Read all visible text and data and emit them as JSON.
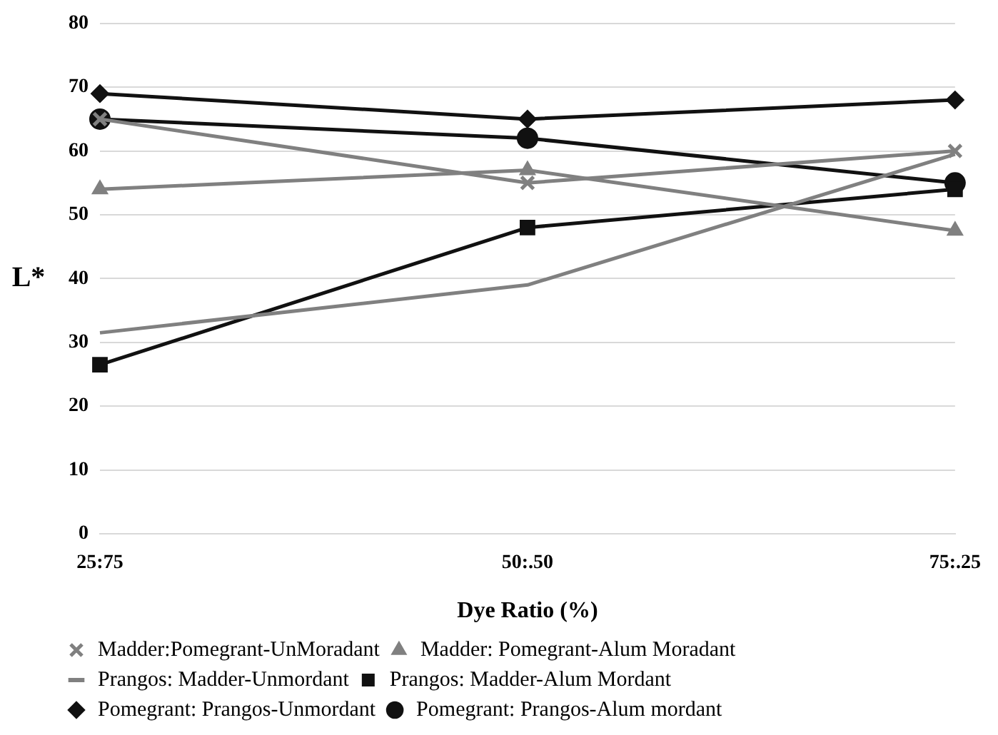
{
  "chart_data": {
    "type": "line",
    "xlabel": "Dye Ratio (%)",
    "ylabel": "L*",
    "categories": [
      "25:75",
      "50:.50",
      "75:.25"
    ],
    "ylim": [
      0,
      80
    ],
    "yticks": [
      0,
      10,
      20,
      30,
      40,
      50,
      60,
      70,
      80
    ],
    "grid": "y",
    "legend": "bottom",
    "line_style": "solid",
    "series": [
      {
        "name": "Madder:Pomegrant-UnMoradant",
        "color": "#808080",
        "marker": "cross",
        "values": [
          65,
          55,
          60
        ]
      },
      {
        "name": "Madder: Pomegrant-Alum Moradant",
        "color": "#808080",
        "marker": "triangle",
        "values": [
          54,
          57,
          47.5
        ]
      },
      {
        "name": "Prangos: Madder-Unmordant",
        "color": "#808080",
        "marker": "none",
        "values": [
          31.5,
          39,
          59.5
        ]
      },
      {
        "name": "Prangos: Madder-Alum Mordant",
        "color": "#111111",
        "marker": "square",
        "values": [
          26.5,
          48,
          54
        ]
      },
      {
        "name": "Pomegrant: Prangos-Unmordant",
        "color": "#111111",
        "marker": "diamond",
        "values": [
          69,
          65,
          68
        ]
      },
      {
        "name": "Pomegrant: Prangos-Alum mordant",
        "color": "#111111",
        "marker": "circle",
        "values": [
          65,
          62,
          55
        ]
      }
    ]
  }
}
